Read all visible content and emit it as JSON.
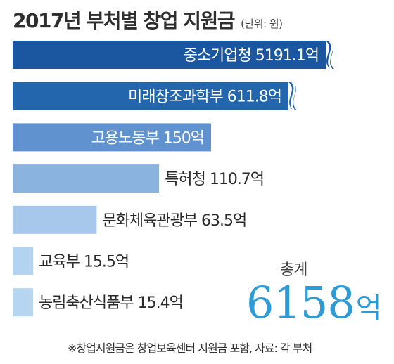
{
  "header": {
    "title": "2017년 부처별 창업 지원금",
    "unit": "(단위: 원)"
  },
  "chart_data": {
    "type": "bar",
    "orientation": "horizontal",
    "title": "2017년 부처별 창업 지원금",
    "unit": "억",
    "categories": [
      "중소기업청",
      "미래창조과학부",
      "고용노동부",
      "특허청",
      "문화체육관광부",
      "교육부",
      "농림축산식품부"
    ],
    "values": [
      5191.1,
      611.8,
      150,
      110.7,
      63.5,
      15.5,
      15.4
    ],
    "labels": [
      "중소기업청 5191.1억",
      "미래창조과학부 611.8억",
      "고용노동부 150억",
      "특허청 110.7억",
      "문화체육관광부 63.5억",
      "교육부 15.5억",
      "농림축산식품부 15.4억"
    ],
    "broken_axis_categories": [
      "중소기업청",
      "미래창조과학부"
    ],
    "colors": [
      "#1a57a0",
      "#2466ae",
      "#5f92cf",
      "#8ab3e0",
      "#a8c8eb",
      "#b3d3f0",
      "#b5d5f1"
    ]
  },
  "total": {
    "label": "총계",
    "value": "6158",
    "unit": "억"
  },
  "footnote": "※창업지원금은 창업보육센터 지원금 포함, 자료: 각 부처"
}
